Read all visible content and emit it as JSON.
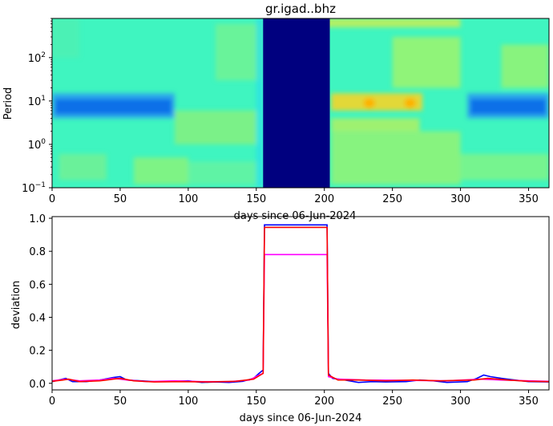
{
  "chart_data": [
    {
      "type": "heatmap",
      "title": "gr.igad..bhz",
      "xlabel": "days since 06-Jun-2024",
      "ylabel": "Period",
      "xlim": [
        0,
        365
      ],
      "x_ticks": [
        0,
        50,
        100,
        150,
        200,
        250,
        300,
        350
      ],
      "y_scale": "log",
      "ylim": [
        0.1,
        800
      ],
      "y_ticks": [
        {
          "value": 0.1,
          "base": "10",
          "exp": "−1"
        },
        {
          "value": 1,
          "base": "10",
          "exp": "0"
        },
        {
          "value": 10,
          "base": "10",
          "exp": "1"
        },
        {
          "value": 100,
          "base": "10",
          "exp": "2"
        }
      ],
      "colormap": "viridis-like jet (dark blue low, yellow high)",
      "colors": {
        "background": "#3ff5c0",
        "gap": "#00007f",
        "low_band": "#0a6fe8",
        "low_band_light": "#2aa0f0",
        "mid_green": "#8cf57a",
        "warm": "#ffd21c",
        "hot": "#ffb000"
      },
      "features": {
        "gap_days": [
          155,
          204
        ],
        "low_band_period": [
          4,
          15
        ],
        "low_band_segments": [
          [
            0,
            90
          ],
          [
            305,
            365
          ]
        ],
        "warm_band_period": [
          6,
          15
        ],
        "warm_band_segments": [
          [
            205,
            272
          ]
        ],
        "hot_spots": [
          {
            "day": 233,
            "period": 9
          },
          {
            "day": 263,
            "period": 9
          }
        ]
      }
    },
    {
      "type": "line",
      "xlabel": "days since 06-Jun-2024",
      "ylabel": "deviation",
      "xlim": [
        0,
        365
      ],
      "ylim": [
        -0.04,
        1.01
      ],
      "x_ticks": [
        0,
        50,
        100,
        150,
        200,
        250,
        300,
        350
      ],
      "y_ticks": [
        "0.0",
        "0.2",
        "0.4",
        "0.6",
        "0.8",
        "1.0"
      ],
      "series": [
        {
          "color": "#0000ff",
          "points": [
            [
              0,
              0.01
            ],
            [
              5,
              0.02
            ],
            [
              10,
              0.03
            ],
            [
              15,
              0.01
            ],
            [
              25,
              0.01
            ],
            [
              35,
              0.02
            ],
            [
              45,
              0.035
            ],
            [
              50,
              0.04
            ],
            [
              55,
              0.02
            ],
            [
              65,
              0.015
            ],
            [
              75,
              0.01
            ],
            [
              90,
              0.012
            ],
            [
              100,
              0.015
            ],
            [
              110,
              0.005
            ],
            [
              120,
              0.008
            ],
            [
              130,
              0.005
            ],
            [
              140,
              0.012
            ],
            [
              148,
              0.03
            ],
            [
              152,
              0.06
            ],
            [
              155,
              0.08
            ],
            [
              156,
              0.96
            ],
            [
              202,
              0.96
            ],
            [
              203,
              0.06
            ],
            [
              206,
              0.03
            ],
            [
              215,
              0.02
            ],
            [
              225,
              0.005
            ],
            [
              235,
              0.01
            ],
            [
              245,
              0.008
            ],
            [
              260,
              0.01
            ],
            [
              270,
              0.02
            ],
            [
              280,
              0.015
            ],
            [
              290,
              0.005
            ],
            [
              305,
              0.01
            ],
            [
              312,
              0.03
            ],
            [
              317,
              0.05
            ],
            [
              322,
              0.04
            ],
            [
              330,
              0.03
            ],
            [
              340,
              0.02
            ],
            [
              350,
              0.01
            ],
            [
              365,
              0.008
            ]
          ]
        },
        {
          "color": "#ff00ff",
          "points": [
            [
              0,
              0.015
            ],
            [
              10,
              0.025
            ],
            [
              20,
              0.015
            ],
            [
              35,
              0.02
            ],
            [
              45,
              0.03
            ],
            [
              55,
              0.02
            ],
            [
              70,
              0.01
            ],
            [
              90,
              0.015
            ],
            [
              110,
              0.01
            ],
            [
              130,
              0.01
            ],
            [
              145,
              0.02
            ],
            [
              152,
              0.05
            ],
            [
              155,
              0.06
            ],
            [
              156,
              0.78
            ],
            [
              202,
              0.78
            ],
            [
              203,
              0.04
            ],
            [
              210,
              0.025
            ],
            [
              230,
              0.02
            ],
            [
              260,
              0.018
            ],
            [
              290,
              0.015
            ],
            [
              315,
              0.025
            ],
            [
              330,
              0.02
            ],
            [
              350,
              0.015
            ],
            [
              365,
              0.012
            ]
          ]
        },
        {
          "color": "#ff0000",
          "points": [
            [
              0,
              0.012
            ],
            [
              8,
              0.02
            ],
            [
              12,
              0.025
            ],
            [
              20,
              0.01
            ],
            [
              35,
              0.015
            ],
            [
              45,
              0.025
            ],
            [
              50,
              0.03
            ],
            [
              60,
              0.015
            ],
            [
              75,
              0.008
            ],
            [
              95,
              0.01
            ],
            [
              115,
              0.008
            ],
            [
              135,
              0.012
            ],
            [
              148,
              0.025
            ],
            [
              153,
              0.05
            ],
            [
              155,
              0.06
            ],
            [
              156,
              0.945
            ],
            [
              202,
              0.945
            ],
            [
              203,
              0.05
            ],
            [
              210,
              0.02
            ],
            [
              225,
              0.02
            ],
            [
              245,
              0.015
            ],
            [
              265,
              0.02
            ],
            [
              285,
              0.015
            ],
            [
              310,
              0.02
            ],
            [
              320,
              0.03
            ],
            [
              335,
              0.02
            ],
            [
              350,
              0.012
            ],
            [
              365,
              0.01
            ]
          ]
        }
      ]
    }
  ]
}
